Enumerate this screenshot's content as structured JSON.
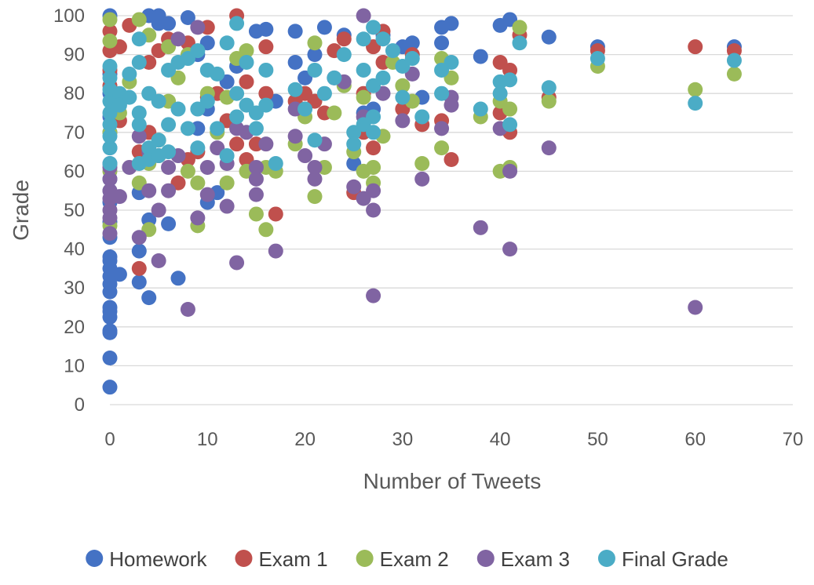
{
  "chart_data": {
    "type": "scatter",
    "title": "",
    "xlabel": "Number of Tweets",
    "ylabel": "Grade",
    "xlim": [
      0,
      70
    ],
    "ylim": [
      0,
      100
    ],
    "xticks": [
      "0",
      "10",
      "20",
      "30",
      "40",
      "50",
      "60",
      "70"
    ],
    "yticks": [
      "0",
      "10",
      "20",
      "30",
      "40",
      "50",
      "60",
      "70",
      "80",
      "90",
      "100"
    ],
    "grid": "horizontal",
    "legend_position": "bottom",
    "series": [
      {
        "name": "Homework",
        "color": "#4472C4",
        "points": [
          [
            0,
            100
          ],
          [
            0,
            4.5
          ],
          [
            0,
            12
          ],
          [
            0,
            18.5
          ],
          [
            0,
            19
          ],
          [
            0,
            22.5
          ],
          [
            0,
            24
          ],
          [
            0,
            25
          ],
          [
            0,
            29
          ],
          [
            0,
            31
          ],
          [
            0,
            33
          ],
          [
            0,
            35
          ],
          [
            0,
            37
          ],
          [
            0,
            38
          ],
          [
            0,
            43
          ],
          [
            0,
            47
          ],
          [
            0,
            52
          ],
          [
            0,
            55
          ],
          [
            0,
            58
          ],
          [
            0,
            62
          ],
          [
            0,
            66
          ],
          [
            0,
            70
          ],
          [
            0,
            74
          ],
          [
            0,
            80
          ],
          [
            0,
            85
          ],
          [
            1,
            33.5
          ],
          [
            3,
            31.5
          ],
          [
            3,
            39.5
          ],
          [
            3,
            54.5
          ],
          [
            4,
            27.5
          ],
          [
            4,
            47.5
          ],
          [
            4,
            100
          ],
          [
            5,
            100
          ],
          [
            5,
            98
          ],
          [
            6,
            46.5
          ],
          [
            6,
            98
          ],
          [
            7,
            32.5
          ],
          [
            8,
            99.5
          ],
          [
            9,
            71
          ],
          [
            9,
            90
          ],
          [
            10,
            52
          ],
          [
            10,
            76
          ],
          [
            10,
            93
          ],
          [
            11,
            54.5
          ],
          [
            12,
            83
          ],
          [
            13,
            87
          ],
          [
            15,
            96
          ],
          [
            16,
            96.5
          ],
          [
            17,
            78
          ],
          [
            19,
            96
          ],
          [
            19,
            88
          ],
          [
            20,
            84
          ],
          [
            21,
            90
          ],
          [
            22,
            97
          ],
          [
            24,
            95
          ],
          [
            25,
            62
          ],
          [
            26,
            75
          ],
          [
            27,
            76
          ],
          [
            28,
            95
          ],
          [
            30,
            92
          ],
          [
            31,
            93
          ],
          [
            32,
            79
          ],
          [
            34,
            97
          ],
          [
            34,
            93
          ],
          [
            35,
            98
          ],
          [
            38,
            89.5
          ],
          [
            40,
            97.5
          ],
          [
            41,
            99
          ],
          [
            45,
            94.5
          ],
          [
            50,
            92
          ],
          [
            64,
            92
          ]
        ]
      },
      {
        "name": "Exam 1",
        "color": "#C0504D",
        "points": [
          [
            0,
            82
          ],
          [
            0,
            86
          ],
          [
            0,
            91
          ],
          [
            0,
            96
          ],
          [
            1,
            92
          ],
          [
            1,
            73
          ],
          [
            2,
            97.5
          ],
          [
            3,
            35
          ],
          [
            3,
            65
          ],
          [
            4,
            88
          ],
          [
            4,
            70
          ],
          [
            5,
            91
          ],
          [
            5,
            64
          ],
          [
            6,
            94
          ],
          [
            7,
            57
          ],
          [
            8,
            63
          ],
          [
            8,
            93
          ],
          [
            9,
            65
          ],
          [
            10,
            97
          ],
          [
            10,
            79
          ],
          [
            11,
            80
          ],
          [
            12,
            73
          ],
          [
            13,
            100
          ],
          [
            13,
            67
          ],
          [
            14,
            83
          ],
          [
            14,
            63
          ],
          [
            15,
            67
          ],
          [
            16,
            92
          ],
          [
            16,
            80
          ],
          [
            17,
            49
          ],
          [
            19,
            78
          ],
          [
            20,
            80
          ],
          [
            21,
            78
          ],
          [
            22,
            75
          ],
          [
            23,
            91
          ],
          [
            24,
            94
          ],
          [
            25,
            54.5
          ],
          [
            26,
            80
          ],
          [
            26,
            70
          ],
          [
            27,
            66
          ],
          [
            27,
            92
          ],
          [
            28,
            96
          ],
          [
            28,
            88
          ],
          [
            30,
            76
          ],
          [
            31,
            90
          ],
          [
            32,
            72
          ],
          [
            34,
            73
          ],
          [
            35,
            63
          ],
          [
            40,
            88
          ],
          [
            40,
            75
          ],
          [
            41,
            86
          ],
          [
            41,
            70
          ],
          [
            42,
            95
          ],
          [
            45,
            79
          ],
          [
            50,
            91
          ],
          [
            60,
            92
          ],
          [
            64,
            91
          ]
        ]
      },
      {
        "name": "Exam 2",
        "color": "#9BBB59",
        "points": [
          [
            0,
            99
          ],
          [
            0,
            93.5
          ],
          [
            0,
            46
          ],
          [
            0,
            60
          ],
          [
            0,
            70
          ],
          [
            1,
            75
          ],
          [
            2,
            83
          ],
          [
            3,
            99
          ],
          [
            3,
            57
          ],
          [
            4,
            95
          ],
          [
            4,
            45
          ],
          [
            4,
            62
          ],
          [
            5,
            68
          ],
          [
            6,
            92
          ],
          [
            6,
            78
          ],
          [
            7,
            84
          ],
          [
            8,
            90
          ],
          [
            8,
            60
          ],
          [
            9,
            57
          ],
          [
            9,
            46
          ],
          [
            10,
            80
          ],
          [
            11,
            70
          ],
          [
            12,
            57
          ],
          [
            12,
            79
          ],
          [
            13,
            89
          ],
          [
            14,
            91
          ],
          [
            14,
            60
          ],
          [
            15,
            49
          ],
          [
            16,
            45
          ],
          [
            16,
            61
          ],
          [
            17,
            60
          ],
          [
            19,
            67
          ],
          [
            20,
            74
          ],
          [
            21,
            93
          ],
          [
            21,
            53.5
          ],
          [
            22,
            61
          ],
          [
            23,
            75
          ],
          [
            24,
            82
          ],
          [
            25,
            65
          ],
          [
            26,
            60
          ],
          [
            26,
            79
          ],
          [
            27,
            61
          ],
          [
            27,
            57
          ],
          [
            28,
            69
          ],
          [
            29,
            88
          ],
          [
            30,
            82
          ],
          [
            31,
            78
          ],
          [
            32,
            62
          ],
          [
            34,
            89
          ],
          [
            34,
            66
          ],
          [
            35,
            84
          ],
          [
            38,
            74
          ],
          [
            40,
            78
          ],
          [
            40,
            60
          ],
          [
            41,
            61
          ],
          [
            41,
            76
          ],
          [
            42,
            97
          ],
          [
            45,
            78
          ],
          [
            50,
            87
          ],
          [
            60,
            81
          ],
          [
            64,
            85
          ]
        ]
      },
      {
        "name": "Exam 3",
        "color": "#8064A2",
        "points": [
          [
            0,
            44
          ],
          [
            0,
            48
          ],
          [
            0,
            50
          ],
          [
            0,
            53
          ],
          [
            0,
            55
          ],
          [
            0,
            58
          ],
          [
            0,
            61
          ],
          [
            1,
            53.5
          ],
          [
            2,
            61
          ],
          [
            3,
            43
          ],
          [
            3,
            69
          ],
          [
            4,
            55
          ],
          [
            4,
            65
          ],
          [
            5,
            37
          ],
          [
            5,
            50
          ],
          [
            6,
            61
          ],
          [
            6,
            55
          ],
          [
            7,
            64
          ],
          [
            7,
            94
          ],
          [
            8,
            24.5
          ],
          [
            9,
            48
          ],
          [
            9,
            97
          ],
          [
            10,
            61
          ],
          [
            10,
            54
          ],
          [
            11,
            66
          ],
          [
            12,
            51
          ],
          [
            12,
            62
          ],
          [
            13,
            36.5
          ],
          [
            13,
            71
          ],
          [
            14,
            70
          ],
          [
            15,
            54
          ],
          [
            15,
            58
          ],
          [
            15,
            61
          ],
          [
            16,
            67
          ],
          [
            17,
            39.5
          ],
          [
            19,
            76
          ],
          [
            19,
            69
          ],
          [
            20,
            64
          ],
          [
            21,
            58
          ],
          [
            21,
            61
          ],
          [
            22,
            67
          ],
          [
            23,
            84
          ],
          [
            24,
            83
          ],
          [
            25,
            56
          ],
          [
            26,
            100
          ],
          [
            26,
            53
          ],
          [
            26,
            74
          ],
          [
            27,
            50
          ],
          [
            27,
            28
          ],
          [
            27,
            55
          ],
          [
            28,
            80
          ],
          [
            30,
            73
          ],
          [
            31,
            85
          ],
          [
            32,
            58
          ],
          [
            34,
            71
          ],
          [
            35,
            79
          ],
          [
            35,
            77
          ],
          [
            38,
            45.5
          ],
          [
            40,
            71
          ],
          [
            41,
            60
          ],
          [
            41,
            40
          ],
          [
            45,
            66
          ],
          [
            60,
            25
          ]
        ]
      },
      {
        "name": "Final Grade",
        "color": "#4BACC6",
        "points": [
          [
            0,
            62
          ],
          [
            0,
            66
          ],
          [
            0,
            69
          ],
          [
            0,
            72
          ],
          [
            0,
            75
          ],
          [
            0,
            78
          ],
          [
            0,
            81
          ],
          [
            0,
            84
          ],
          [
            0,
            87
          ],
          [
            1,
            80
          ],
          [
            1,
            77
          ],
          [
            2,
            85
          ],
          [
            2,
            79
          ],
          [
            3,
            94
          ],
          [
            3,
            88
          ],
          [
            3,
            75
          ],
          [
            3,
            72
          ],
          [
            3,
            62
          ],
          [
            4,
            80
          ],
          [
            4,
            66
          ],
          [
            4,
            63
          ],
          [
            5,
            78
          ],
          [
            5,
            68
          ],
          [
            5,
            64
          ],
          [
            6,
            86
          ],
          [
            6,
            72
          ],
          [
            6,
            65
          ],
          [
            7,
            88
          ],
          [
            7,
            76
          ],
          [
            8,
            89
          ],
          [
            8,
            71
          ],
          [
            9,
            91
          ],
          [
            9,
            76
          ],
          [
            9,
            66
          ],
          [
            10,
            86
          ],
          [
            10,
            78
          ],
          [
            11,
            71
          ],
          [
            11,
            85
          ],
          [
            12,
            93
          ],
          [
            12,
            64
          ],
          [
            13,
            98
          ],
          [
            13,
            80
          ],
          [
            13,
            74
          ],
          [
            14,
            88
          ],
          [
            14,
            77
          ],
          [
            15,
            75
          ],
          [
            15,
            71
          ],
          [
            16,
            86
          ],
          [
            16,
            77
          ],
          [
            17,
            62
          ],
          [
            19,
            81
          ],
          [
            20,
            76
          ],
          [
            21,
            86
          ],
          [
            21,
            68
          ],
          [
            22,
            80
          ],
          [
            23,
            84
          ],
          [
            24,
            90
          ],
          [
            25,
            70
          ],
          [
            25,
            67
          ],
          [
            26,
            94
          ],
          [
            26,
            86
          ],
          [
            26,
            72
          ],
          [
            27,
            97
          ],
          [
            27,
            82
          ],
          [
            27,
            74
          ],
          [
            27,
            70
          ],
          [
            28,
            94
          ],
          [
            28,
            84
          ],
          [
            29,
            91
          ],
          [
            30,
            87
          ],
          [
            30,
            79
          ],
          [
            31,
            89
          ],
          [
            32,
            74
          ],
          [
            34,
            86
          ],
          [
            34,
            80
          ],
          [
            35,
            88
          ],
          [
            38,
            76
          ],
          [
            40,
            83
          ],
          [
            40,
            80
          ],
          [
            41,
            83.5
          ],
          [
            41,
            72
          ],
          [
            42,
            93
          ],
          [
            45,
            81.5
          ],
          [
            50,
            89
          ],
          [
            60,
            77.5
          ],
          [
            64,
            88.5
          ]
        ]
      }
    ]
  }
}
